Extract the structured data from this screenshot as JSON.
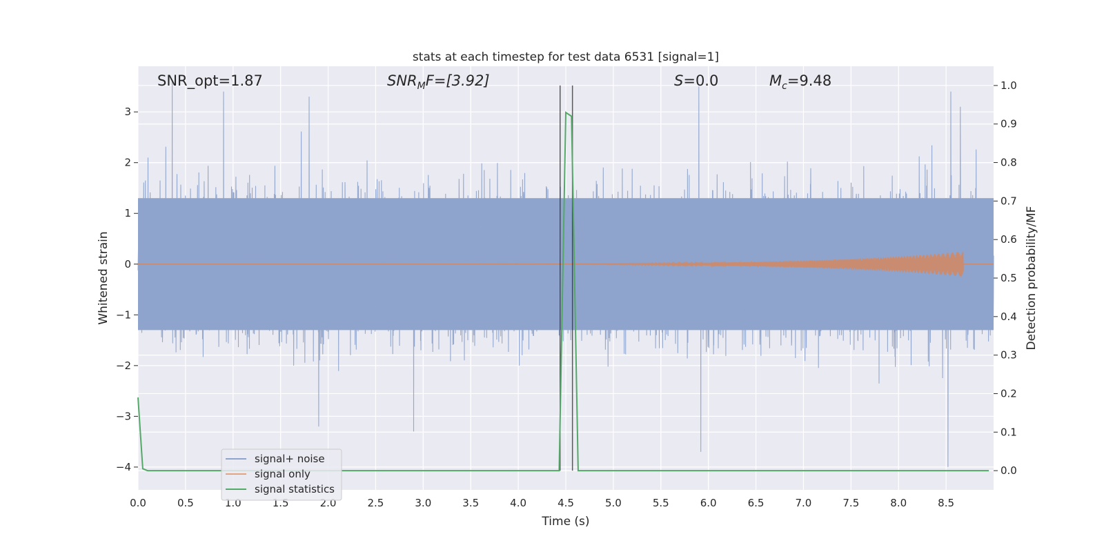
{
  "chart_data": {
    "type": "line",
    "title": "stats at each timestep for test data 6531 [signal=1]",
    "xlabel": "Time (s)",
    "ylabel_left": "Whitened strain",
    "ylabel_right": "Detection probability/MF",
    "xlim": [
      0.0,
      9.0
    ],
    "ylim_left": [
      -4.45,
      3.9
    ],
    "ylim_right": [
      -0.05,
      1.05
    ],
    "x_ticks": [
      "0.0",
      "0.5",
      "1.0",
      "1.5",
      "2.0",
      "2.5",
      "3.0",
      "3.5",
      "4.0",
      "4.5",
      "5.0",
      "5.5",
      "6.0",
      "6.5",
      "7.0",
      "7.5",
      "8.0",
      "8.5"
    ],
    "y_ticks_left": [
      "−4",
      "−3",
      "−2",
      "−1",
      "0",
      "1",
      "2",
      "3"
    ],
    "y_ticks_right": [
      "0.0",
      "0.1",
      "0.2",
      "0.3",
      "0.4",
      "0.5",
      "0.6",
      "0.7",
      "0.8",
      "0.9",
      "1.0"
    ],
    "grid": true,
    "legend_placement": "lower-left",
    "annotations": {
      "snr_opt": "SNR_opt=1.87",
      "snr_mf_base": "SNR",
      "snr_mf_sub": "M",
      "snr_mf_rest": "F=[3.92]",
      "s_base": "S",
      "s_rest": "=0.0",
      "mc_base": "M",
      "mc_sub": "c",
      "mc_rest": "=9.48"
    },
    "vertical_lines_x": [
      4.44,
      4.57
    ],
    "series": [
      {
        "name": "signal+ noise",
        "color": "#8fa4cc",
        "description_points": {
          "envelope_typical": [
            -1.3,
            1.3
          ],
          "peaks": [
            [
              0.36,
              3.6
            ],
            [
              0.9,
              3.4
            ],
            [
              1.8,
              3.3
            ],
            [
              5.9,
              3.5
            ],
            [
              8.55,
              3.4
            ],
            [
              8.65,
              3.1
            ],
            [
              2.9,
              -3.3
            ],
            [
              1.9,
              -3.2
            ],
            [
              5.92,
              -3.7
            ],
            [
              8.52,
              -4.0
            ]
          ]
        }
      },
      {
        "name": "signal only",
        "color": "#dd8452",
        "chirp": {
          "start": 0.0,
          "end": 8.68,
          "amp_start": 0.0,
          "amp_end": 0.25
        }
      },
      {
        "name": "signal statistics",
        "color": "#55a868",
        "x": [
          0.0,
          0.05,
          0.1,
          4.43,
          4.5,
          4.56,
          4.63,
          8.95
        ],
        "y": [
          0.19,
          0.005,
          0.0,
          0.0,
          0.93,
          0.92,
          0.0,
          0.0
        ]
      }
    ]
  }
}
